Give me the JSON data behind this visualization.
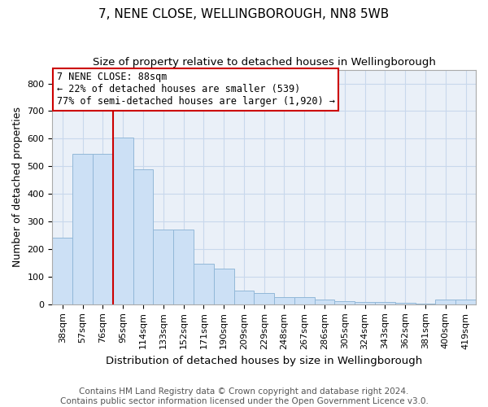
{
  "title": "7, NENE CLOSE, WELLINGBOROUGH, NN8 5WB",
  "subtitle": "Size of property relative to detached houses in Wellingborough",
  "xlabel": "Distribution of detached houses by size in Wellingborough",
  "ylabel": "Number of detached properties",
  "categories": [
    "38sqm",
    "57sqm",
    "76sqm",
    "95sqm",
    "114sqm",
    "133sqm",
    "152sqm",
    "171sqm",
    "190sqm",
    "209sqm",
    "229sqm",
    "248sqm",
    "267sqm",
    "286sqm",
    "305sqm",
    "324sqm",
    "343sqm",
    "362sqm",
    "381sqm",
    "400sqm",
    "419sqm"
  ],
  "values": [
    240,
    545,
    545,
    603,
    490,
    270,
    270,
    147,
    130,
    50,
    40,
    25,
    25,
    18,
    12,
    8,
    8,
    5,
    3,
    18,
    18
  ],
  "bar_color": "#cce0f5",
  "bar_edge_color": "#92b8d8",
  "vline_x": 2.5,
  "vline_color": "#cc0000",
  "annotation_text": "7 NENE CLOSE: 88sqm\n← 22% of detached houses are smaller (539)\n77% of semi-detached houses are larger (1,920) →",
  "annotation_box_color": "white",
  "annotation_box_edge_color": "#cc0000",
  "ylim": [
    0,
    850
  ],
  "yticks": [
    0,
    100,
    200,
    300,
    400,
    500,
    600,
    700,
    800
  ],
  "footer": "Contains HM Land Registry data © Crown copyright and database right 2024.\nContains public sector information licensed under the Open Government Licence v3.0.",
  "title_fontsize": 11,
  "subtitle_fontsize": 9.5,
  "xlabel_fontsize": 9.5,
  "ylabel_fontsize": 9,
  "footer_fontsize": 7.5,
  "tick_fontsize": 8
}
